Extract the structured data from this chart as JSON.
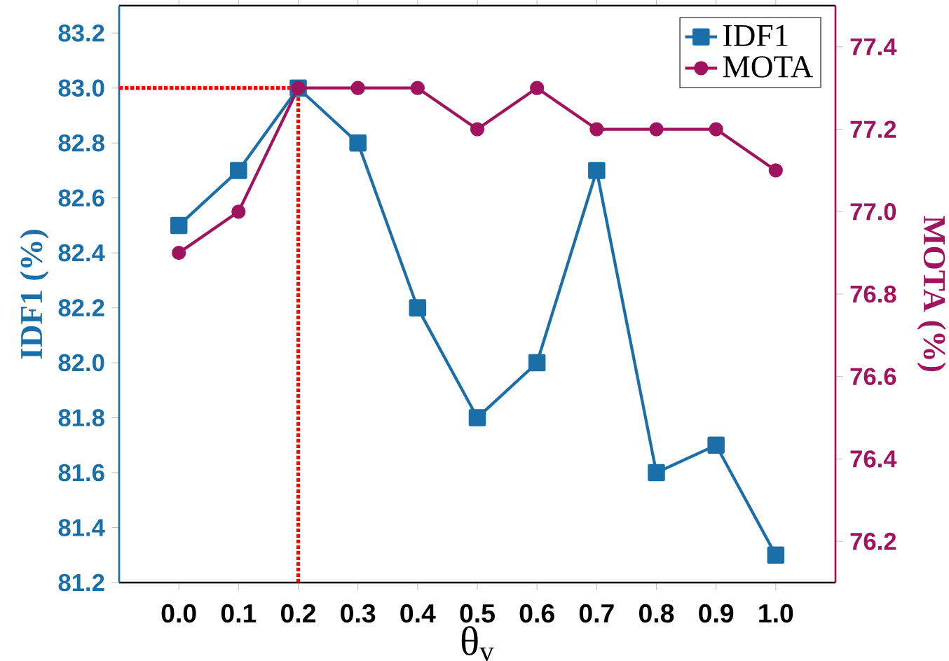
{
  "chart_data": {
    "type": "line",
    "xlabel": "θ$_{v}$",
    "ylabel": "IDF1 (%)",
    "y2label": "MOTA (%)",
    "x": [
      0.0,
      0.1,
      0.2,
      0.3,
      0.4,
      0.5,
      0.6,
      0.7,
      0.8,
      0.9,
      1.0
    ],
    "series": [
      {
        "name": "IDF1",
        "color": "#1a6fa8",
        "marker": "square",
        "values": [
          82.5,
          82.7,
          83.0,
          82.8,
          82.2,
          81.8,
          82.0,
          82.7,
          81.6,
          81.7,
          81.3
        ]
      },
      {
        "name": "MOTA",
        "color": "#a0135e",
        "marker": "circle",
        "axis": "y2",
        "values": [
          76.9,
          77.0,
          77.3,
          77.3,
          77.3,
          77.2,
          77.3,
          77.2,
          77.2,
          77.2,
          77.1
        ]
      }
    ],
    "xlim": [
      -0.1,
      1.1
    ],
    "xticks": [
      {
        "value": 0,
        "label": "0.0"
      },
      0.1,
      0.2,
      0.3,
      0.4,
      0.5,
      0.6,
      0.7,
      0.8,
      0.9,
      {
        "value": 1,
        "label": "1.0"
      }
    ],
    "ylim": [
      81.2,
      83.3
    ],
    "yticks": [
      81.2,
      81.4,
      81.6,
      81.8,
      {
        "value": 82,
        "label": "82.0"
      },
      82.2,
      82.4,
      82.6,
      82.8,
      {
        "value": 83,
        "label": "83.0"
      },
      83.2
    ],
    "y2lim": [
      76.1,
      77.5
    ],
    "y2ticks": [
      76.2,
      76.4,
      76.6,
      76.8,
      {
        "value": 77,
        "label": "77.0"
      },
      77.2,
      77.4
    ],
    "ref_lines": [
      {
        "axis": "y",
        "value": 83.0,
        "color": "#ff0000",
        "line_style": "dotted"
      },
      {
        "axis": "x",
        "value": 0.2,
        "color": "#ff0000",
        "line_style": "dotted"
      }
    ],
    "legend": "top right",
    "grid": false,
    "line_style": "solid"
  }
}
